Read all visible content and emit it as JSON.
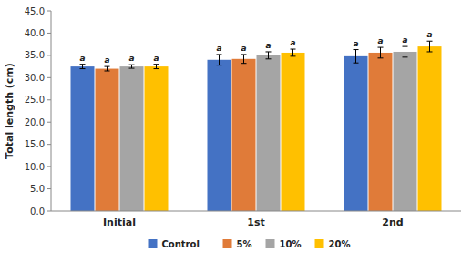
{
  "chart_data": {
    "type": "bar",
    "categories": [
      "Initial",
      "1st",
      "2nd"
    ],
    "series": [
      {
        "name": "Control",
        "color": "#4472C4",
        "values": [
          32.5,
          34.0,
          34.8
        ],
        "errors": [
          0.5,
          1.2,
          1.5
        ],
        "annotations": [
          "a",
          "a",
          "a"
        ]
      },
      {
        "name": "5%",
        "color": "#E07B39",
        "values": [
          32.0,
          34.2,
          35.6
        ],
        "errors": [
          0.5,
          1.0,
          1.2
        ],
        "annotations": [
          "a",
          "a",
          "a"
        ]
      },
      {
        "name": "10%",
        "color": "#A5A5A5",
        "values": [
          32.5,
          35.0,
          35.8
        ],
        "errors": [
          0.4,
          0.8,
          1.2
        ],
        "annotations": [
          "a",
          "a",
          "a"
        ]
      },
      {
        "name": "20%",
        "color": "#FFC000",
        "values": [
          32.5,
          35.6,
          37.0
        ],
        "errors": [
          0.5,
          0.8,
          1.2
        ],
        "annotations": [
          "a",
          "a",
          "a"
        ]
      }
    ],
    "ylabel": "Total length (cm)",
    "ylim": [
      0.0,
      45.0
    ],
    "yticks": [
      {
        "value": 0.0,
        "label": "0.0"
      },
      {
        "value": 5.0,
        "label": "5.0"
      },
      {
        "value": 10.0,
        "label": "10.0"
      },
      {
        "value": 15.0,
        "label": "15.0"
      },
      {
        "value": 20.0,
        "label": "20.0"
      },
      {
        "value": 25.0,
        "label": "25.0"
      },
      {
        "value": 30.0,
        "label": "30.0"
      },
      {
        "value": 35.0,
        "label": "35.0"
      },
      {
        "value": 40.0,
        "label": "40.0"
      },
      {
        "value": 45.0,
        "label": "45.0"
      }
    ],
    "grid": false,
    "legend": "bottom"
  }
}
